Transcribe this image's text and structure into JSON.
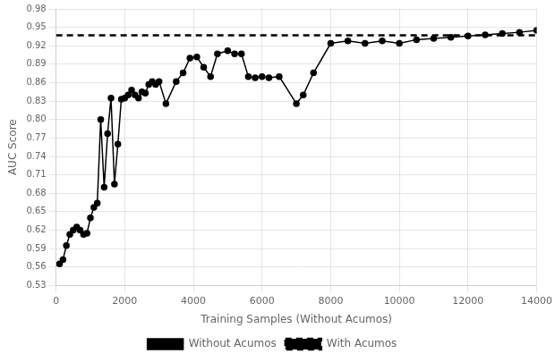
{
  "chart_data": {
    "type": "line",
    "x": [
      100,
      200,
      300,
      400,
      500,
      600,
      700,
      800,
      900,
      1000,
      1100,
      1200,
      1300,
      1400,
      1500,
      1600,
      1700,
      1800,
      1900,
      2000,
      2100,
      2200,
      2300,
      2400,
      2500,
      2600,
      2700,
      2800,
      2900,
      3000,
      3200,
      3500,
      3700,
      3900,
      4100,
      4300,
      4500,
      4700,
      5000,
      5200,
      5400,
      5600,
      5800,
      6000,
      6200,
      6500,
      7000,
      7200,
      7500,
      8000,
      8500,
      9000,
      9500,
      10000,
      10500,
      11000,
      11500,
      12000,
      12500,
      13000,
      13500,
      14000
    ],
    "series": [
      {
        "name": "Without Acumos",
        "color": "#000000",
        "marker": "circle",
        "line_style": "solid",
        "values": [
          0.565,
          0.572,
          0.595,
          0.613,
          0.62,
          0.625,
          0.62,
          0.613,
          0.615,
          0.64,
          0.657,
          0.664,
          0.8,
          0.69,
          0.777,
          0.835,
          0.695,
          0.76,
          0.833,
          0.835,
          0.84,
          0.848,
          0.84,
          0.835,
          0.845,
          0.843,
          0.857,
          0.862,
          0.857,
          0.862,
          0.826,
          0.862,
          0.876,
          0.9,
          0.902,
          0.885,
          0.87,
          0.907,
          0.912,
          0.907,
          0.907,
          0.87,
          0.868,
          0.87,
          0.868,
          0.87,
          0.826,
          0.84,
          0.876,
          0.924,
          0.928,
          0.924,
          0.928,
          0.924,
          0.93,
          0.932,
          0.934,
          0.936,
          0.938,
          0.94,
          0.942,
          0.945
        ]
      },
      {
        "name": "With Acumos",
        "color": "#000000",
        "marker": "none",
        "line_style": "dashed",
        "x": [
          0,
          14000
        ],
        "values": [
          0.937,
          0.937
        ]
      }
    ],
    "xlabel": "Training Samples (Without Acumos)",
    "ylabel": "AUC Score",
    "xlim": [
      0,
      14000
    ],
    "xticks": [
      0,
      2000,
      4000,
      6000,
      8000,
      10000,
      12000,
      14000
    ],
    "ylim": [
      0.53,
      0.98
    ],
    "yticks": [
      0.53,
      0.56,
      0.59,
      0.62,
      0.65,
      0.68,
      0.71,
      0.74,
      0.77,
      {
        "value": 0.8,
        "label": "0.80"
      },
      0.83,
      0.86,
      0.89,
      0.92,
      0.95,
      0.98
    ],
    "grid": true,
    "legend": "bottom"
  }
}
